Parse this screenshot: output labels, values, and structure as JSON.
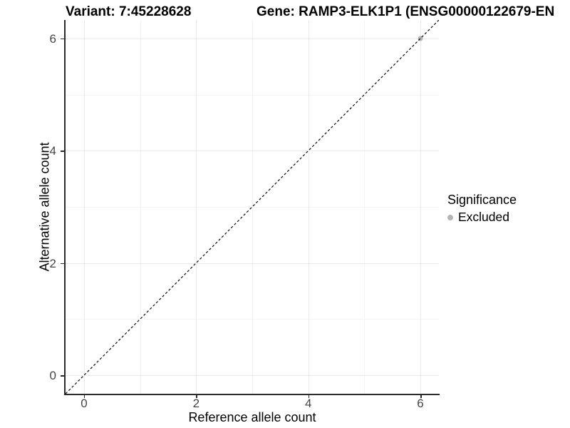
{
  "chart_data": {
    "type": "scatter",
    "title_variant": "Variant: 7:45228628",
    "title_gene": "Gene: RAMP3-ELK1P1 (ENSG00000122679-EN",
    "xlabel": "Reference allele count",
    "ylabel": "Alternative allele count",
    "xlim": [
      -0.33,
      6.33
    ],
    "ylim": [
      -0.33,
      6.33
    ],
    "x_ticks": [
      0,
      2,
      4,
      6
    ],
    "y_ticks": [
      0,
      2,
      4,
      6
    ],
    "x_minor_ticks": [
      1,
      3,
      5
    ],
    "y_minor_ticks": [
      1,
      3,
      5
    ],
    "grid": true,
    "points": [
      {
        "x": 6,
        "y": 6,
        "significance": "Excluded"
      }
    ],
    "identity_line": {
      "style": "dashed",
      "x1": -0.33,
      "y1": -0.33,
      "x2": 6.33,
      "y2": 6.33
    },
    "legend": {
      "title": "Significance",
      "position": "right",
      "items": [
        {
          "label": "Excluded",
          "color": "#b5b5b5"
        }
      ]
    },
    "colors": {
      "point": "#b5b5b5",
      "grid_major": "#e9e9e9",
      "grid_minor": "#f4f4f4",
      "axis_line": "#2b2b2b",
      "tick_label": "#444444",
      "identity_line": "#000000",
      "background": "#ffffff"
    }
  }
}
